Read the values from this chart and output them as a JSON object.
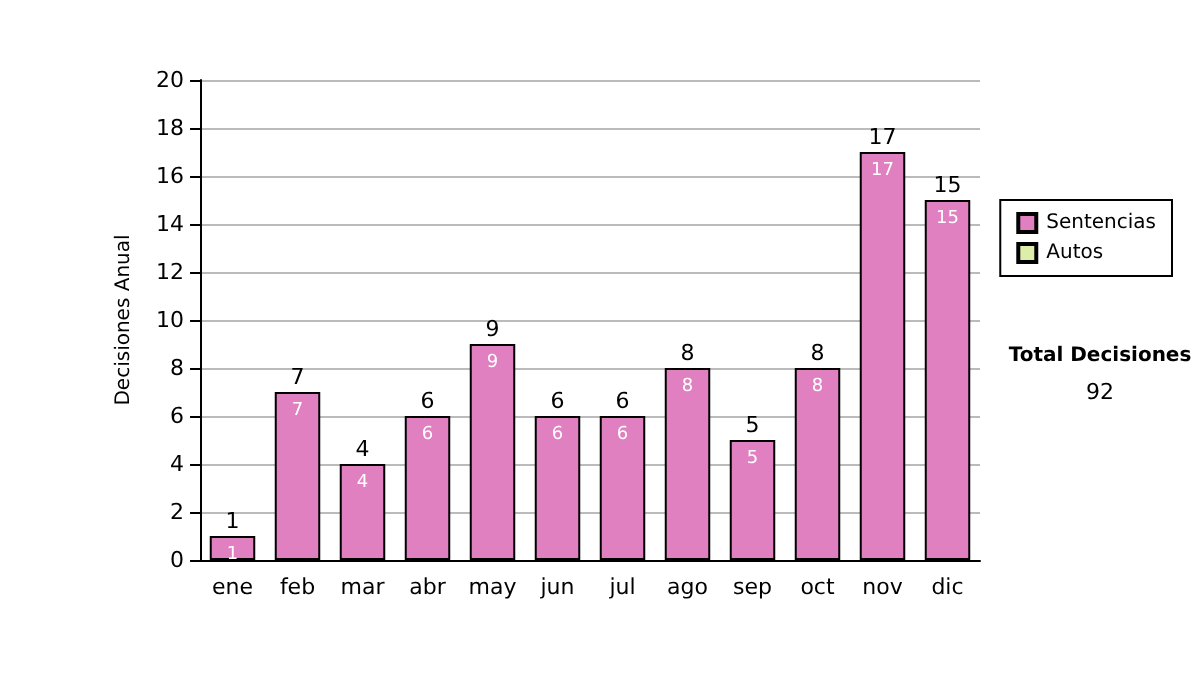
{
  "chart_data": {
    "type": "bar",
    "ylabel": "Decisiones Anual",
    "categories": [
      "ene",
      "feb",
      "mar",
      "abr",
      "may",
      "jun",
      "jul",
      "ago",
      "sep",
      "oct",
      "nov",
      "dic"
    ],
    "series": [
      {
        "name": "Sentencias",
        "color": "#e080c0",
        "values": [
          1,
          7,
          4,
          6,
          9,
          6,
          6,
          8,
          5,
          8,
          17,
          15
        ]
      },
      {
        "name": "Autos",
        "color": "#ddeeaa",
        "values": [
          null,
          null,
          null,
          null,
          null,
          null,
          null,
          null,
          null,
          null,
          null,
          null
        ]
      }
    ],
    "stacked": true,
    "data_labels": true,
    "totals": [
      "1",
      "7",
      "4",
      "6",
      "9",
      "6",
      "6",
      "8",
      "5",
      "8",
      "17",
      "15"
    ],
    "ylim": [
      0,
      20
    ],
    "yticks": [
      0,
      2,
      4,
      6,
      8,
      10,
      12,
      14,
      16,
      18,
      20
    ],
    "grid": "y",
    "legend": "right",
    "annotations": [
      "Total Decisiones",
      "92"
    ]
  }
}
